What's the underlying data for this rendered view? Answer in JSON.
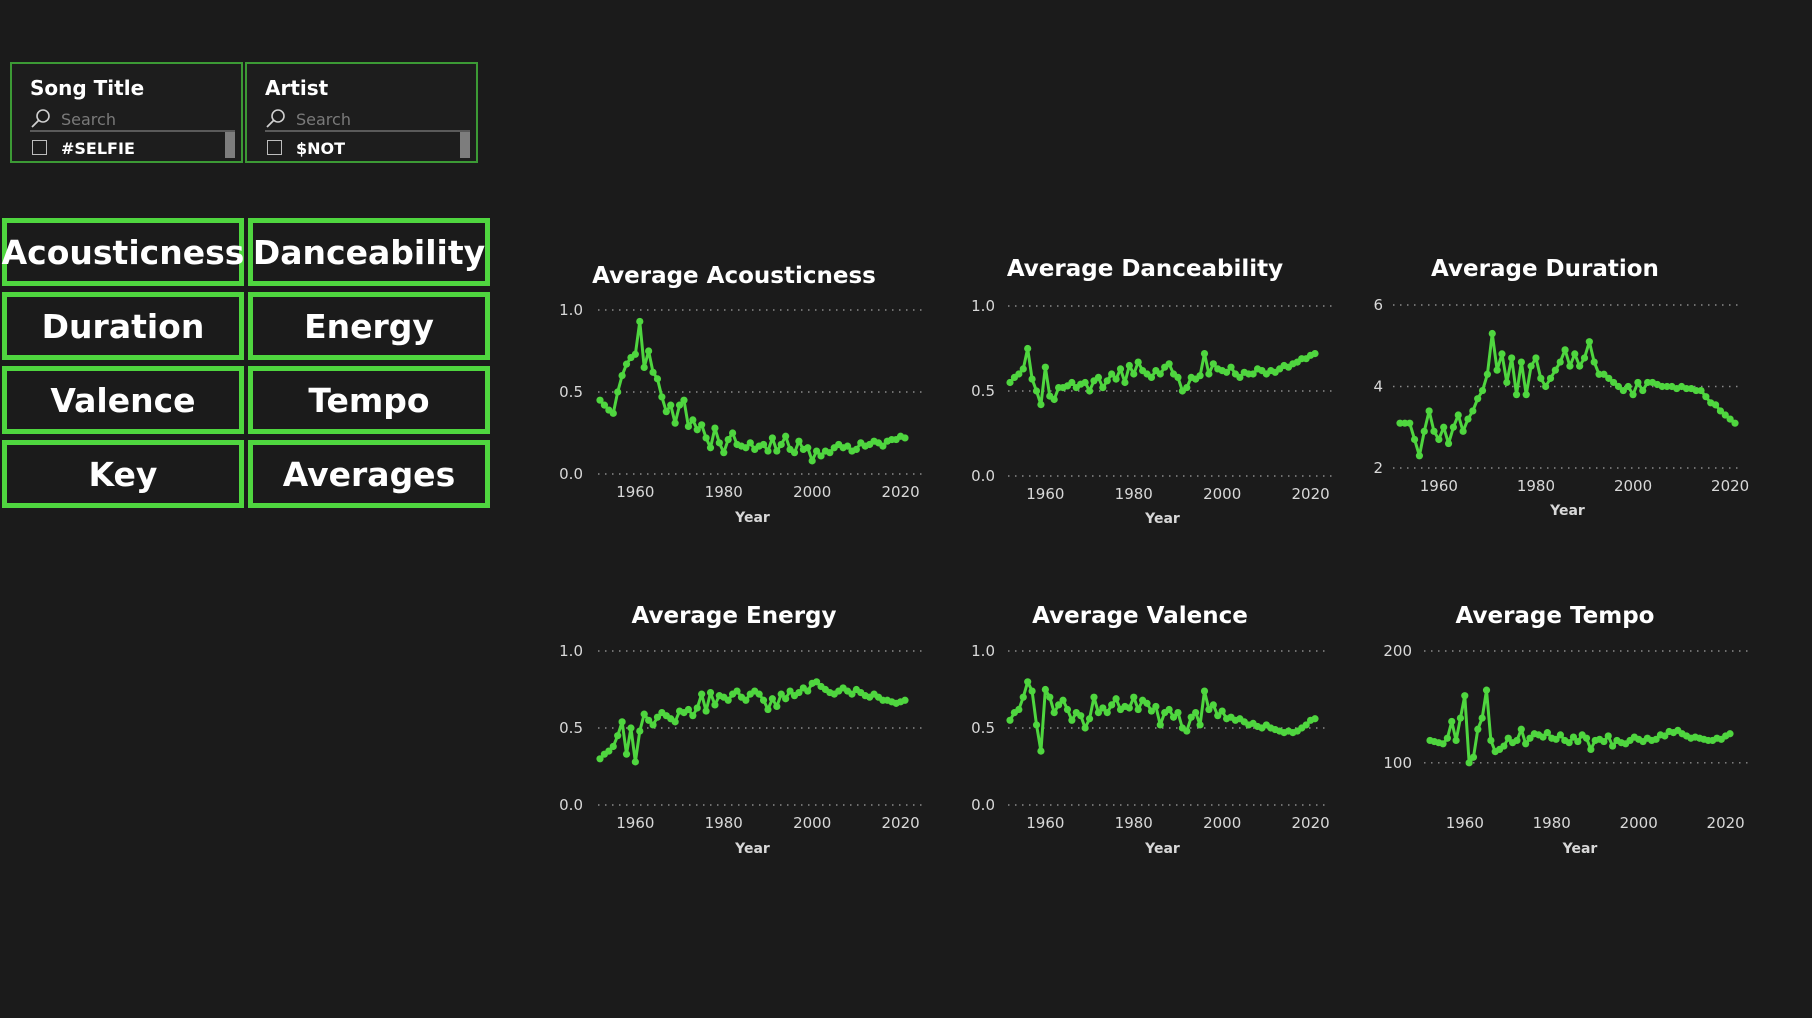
{
  "slicers": [
    {
      "title": "Song Title",
      "search_placeholder": "Search",
      "first_item": "#SELFIE"
    },
    {
      "title": "Artist",
      "search_placeholder": "Search",
      "first_item": "$NOT"
    }
  ],
  "nav_buttons": [
    "Acousticness",
    "Danceability",
    "Duration",
    "Energy",
    "Valence",
    "Tempo",
    "Key",
    "Averages"
  ],
  "colors": {
    "accent": "#4fd63f",
    "line": "#4fd63f",
    "background": "#1b1b1b",
    "slicer_border": "#3c9a35"
  },
  "chart_data": [
    {
      "type": "line",
      "title": "Average Acousticness",
      "xlabel": "Year",
      "ylabel": "",
      "ylim": [
        0,
        1
      ],
      "yticks": [
        "0.0",
        "0.5",
        "1.0"
      ],
      "xticks": [
        "1960",
        "1980",
        "2000",
        "2020"
      ],
      "x": [
        1952,
        1953,
        1954,
        1955,
        1956,
        1957,
        1958,
        1959,
        1960,
        1961,
        1962,
        1963,
        1964,
        1965,
        1966,
        1967,
        1968,
        1969,
        1970,
        1971,
        1972,
        1973,
        1974,
        1975,
        1976,
        1977,
        1978,
        1979,
        1980,
        1981,
        1982,
        1983,
        1984,
        1985,
        1986,
        1987,
        1988,
        1989,
        1990,
        1991,
        1992,
        1993,
        1994,
        1995,
        1996,
        1997,
        1998,
        1999,
        2000,
        2001,
        2002,
        2003,
        2004,
        2005,
        2006,
        2007,
        2008,
        2009,
        2010,
        2011,
        2012,
        2013,
        2014,
        2015,
        2016,
        2017,
        2018,
        2019,
        2020,
        2021
      ],
      "values": [
        0.45,
        0.42,
        0.39,
        0.37,
        0.5,
        0.6,
        0.67,
        0.71,
        0.73,
        0.93,
        0.65,
        0.75,
        0.62,
        0.58,
        0.47,
        0.38,
        0.42,
        0.31,
        0.42,
        0.45,
        0.29,
        0.33,
        0.27,
        0.3,
        0.22,
        0.16,
        0.28,
        0.19,
        0.13,
        0.21,
        0.25,
        0.18,
        0.17,
        0.16,
        0.19,
        0.15,
        0.17,
        0.18,
        0.14,
        0.22,
        0.14,
        0.18,
        0.23,
        0.15,
        0.13,
        0.2,
        0.15,
        0.16,
        0.08,
        0.14,
        0.11,
        0.14,
        0.13,
        0.16,
        0.18,
        0.16,
        0.17,
        0.14,
        0.15,
        0.19,
        0.17,
        0.18,
        0.2,
        0.19,
        0.17,
        0.2,
        0.21,
        0.21,
        0.23,
        0.22
      ]
    },
    {
      "type": "line",
      "title": "Average Danceability",
      "xlabel": "Year",
      "ylabel": "",
      "ylim": [
        0,
        1
      ],
      "yticks": [
        "0.0",
        "0.5",
        "1.0"
      ],
      "xticks": [
        "1960",
        "1980",
        "2000",
        "2020"
      ],
      "x": [
        1952,
        1953,
        1954,
        1955,
        1956,
        1957,
        1958,
        1959,
        1960,
        1961,
        1962,
        1963,
        1964,
        1965,
        1966,
        1967,
        1968,
        1969,
        1970,
        1971,
        1972,
        1973,
        1974,
        1975,
        1976,
        1977,
        1978,
        1979,
        1980,
        1981,
        1982,
        1983,
        1984,
        1985,
        1986,
        1987,
        1988,
        1989,
        1990,
        1991,
        1992,
        1993,
        1994,
        1995,
        1996,
        1997,
        1998,
        1999,
        2000,
        2001,
        2002,
        2003,
        2004,
        2005,
        2006,
        2007,
        2008,
        2009,
        2010,
        2011,
        2012,
        2013,
        2014,
        2015,
        2016,
        2017,
        2018,
        2019,
        2020,
        2021
      ],
      "values": [
        0.55,
        0.58,
        0.6,
        0.63,
        0.75,
        0.57,
        0.5,
        0.42,
        0.64,
        0.47,
        0.45,
        0.52,
        0.52,
        0.53,
        0.55,
        0.52,
        0.54,
        0.55,
        0.5,
        0.56,
        0.58,
        0.52,
        0.56,
        0.6,
        0.57,
        0.63,
        0.55,
        0.65,
        0.6,
        0.67,
        0.62,
        0.6,
        0.58,
        0.62,
        0.6,
        0.64,
        0.66,
        0.6,
        0.58,
        0.5,
        0.52,
        0.58,
        0.57,
        0.59,
        0.72,
        0.6,
        0.66,
        0.63,
        0.62,
        0.61,
        0.64,
        0.6,
        0.58,
        0.61,
        0.6,
        0.6,
        0.63,
        0.62,
        0.6,
        0.62,
        0.61,
        0.63,
        0.65,
        0.64,
        0.66,
        0.67,
        0.69,
        0.69,
        0.71,
        0.72
      ]
    },
    {
      "type": "line",
      "title": "Average Duration",
      "xlabel": "Year",
      "ylabel": "",
      "ylim": [
        2,
        6
      ],
      "yticks": [
        "2",
        "4",
        "6"
      ],
      "xticks": [
        "1960",
        "1980",
        "2000",
        "2020"
      ],
      "x": [
        1952,
        1953,
        1954,
        1955,
        1956,
        1957,
        1958,
        1959,
        1960,
        1961,
        1962,
        1963,
        1964,
        1965,
        1966,
        1967,
        1968,
        1969,
        1970,
        1971,
        1972,
        1973,
        1974,
        1975,
        1976,
        1977,
        1978,
        1979,
        1980,
        1981,
        1982,
        1983,
        1984,
        1985,
        1986,
        1987,
        1988,
        1989,
        1990,
        1991,
        1992,
        1993,
        1994,
        1995,
        1996,
        1997,
        1998,
        1999,
        2000,
        2001,
        2002,
        2003,
        2004,
        2005,
        2006,
        2007,
        2008,
        2009,
        2010,
        2011,
        2012,
        2013,
        2014,
        2015,
        2016,
        2017,
        2018,
        2019,
        2020,
        2021
      ],
      "values": [
        3.1,
        3.1,
        3.1,
        2.7,
        2.3,
        2.9,
        3.4,
        2.9,
        2.7,
        3.0,
        2.6,
        3.0,
        3.3,
        2.9,
        3.2,
        3.4,
        3.7,
        3.9,
        4.3,
        5.3,
        4.4,
        4.8,
        4.1,
        4.7,
        3.8,
        4.6,
        3.8,
        4.5,
        4.7,
        4.2,
        4.0,
        4.2,
        4.4,
        4.6,
        4.9,
        4.5,
        4.8,
        4.5,
        4.7,
        5.1,
        4.6,
        4.3,
        4.3,
        4.2,
        4.1,
        4.0,
        3.9,
        4.0,
        3.8,
        4.1,
        3.9,
        4.1,
        4.1,
        4.05,
        4.0,
        4.0,
        4.0,
        3.95,
        4.0,
        3.95,
        3.95,
        3.9,
        3.9,
        3.75,
        3.6,
        3.55,
        3.4,
        3.3,
        3.2,
        3.1
      ]
    },
    {
      "type": "line",
      "title": "Average Energy",
      "xlabel": "Year",
      "ylabel": "",
      "ylim": [
        0,
        1
      ],
      "yticks": [
        "0.0",
        "0.5",
        "1.0"
      ],
      "xticks": [
        "1960",
        "1980",
        "2000",
        "2020"
      ],
      "x": [
        1952,
        1953,
        1954,
        1955,
        1956,
        1957,
        1958,
        1959,
        1960,
        1961,
        1962,
        1963,
        1964,
        1965,
        1966,
        1967,
        1968,
        1969,
        1970,
        1971,
        1972,
        1973,
        1974,
        1975,
        1976,
        1977,
        1978,
        1979,
        1980,
        1981,
        1982,
        1983,
        1984,
        1985,
        1986,
        1987,
        1988,
        1989,
        1990,
        1991,
        1992,
        1993,
        1994,
        1995,
        1996,
        1997,
        1998,
        1999,
        2000,
        2001,
        2002,
        2003,
        2004,
        2005,
        2006,
        2007,
        2008,
        2009,
        2010,
        2011,
        2012,
        2013,
        2014,
        2015,
        2016,
        2017,
        2018,
        2019,
        2020,
        2021
      ],
      "values": [
        0.3,
        0.33,
        0.35,
        0.38,
        0.45,
        0.54,
        0.33,
        0.5,
        0.28,
        0.48,
        0.59,
        0.55,
        0.52,
        0.57,
        0.6,
        0.58,
        0.56,
        0.54,
        0.61,
        0.6,
        0.62,
        0.58,
        0.63,
        0.72,
        0.61,
        0.73,
        0.65,
        0.71,
        0.7,
        0.68,
        0.72,
        0.74,
        0.7,
        0.68,
        0.72,
        0.74,
        0.72,
        0.68,
        0.62,
        0.69,
        0.64,
        0.72,
        0.69,
        0.74,
        0.71,
        0.73,
        0.76,
        0.74,
        0.79,
        0.8,
        0.77,
        0.75,
        0.73,
        0.72,
        0.74,
        0.76,
        0.74,
        0.72,
        0.75,
        0.73,
        0.71,
        0.7,
        0.72,
        0.7,
        0.68,
        0.68,
        0.67,
        0.66,
        0.67,
        0.68
      ]
    },
    {
      "type": "line",
      "title": "Average Valence",
      "xlabel": "Year",
      "ylabel": "",
      "ylim": [
        0,
        1
      ],
      "yticks": [
        "0.0",
        "0.5",
        "1.0"
      ],
      "xticks": [
        "1960",
        "1980",
        "2000",
        "2020"
      ],
      "x": [
        1952,
        1953,
        1954,
        1955,
        1956,
        1957,
        1958,
        1959,
        1960,
        1961,
        1962,
        1963,
        1964,
        1965,
        1966,
        1967,
        1968,
        1969,
        1970,
        1971,
        1972,
        1973,
        1974,
        1975,
        1976,
        1977,
        1978,
        1979,
        1980,
        1981,
        1982,
        1983,
        1984,
        1985,
        1986,
        1987,
        1988,
        1989,
        1990,
        1991,
        1992,
        1993,
        1994,
        1995,
        1996,
        1997,
        1998,
        1999,
        2000,
        2001,
        2002,
        2003,
        2004,
        2005,
        2006,
        2007,
        2008,
        2009,
        2010,
        2011,
        2012,
        2013,
        2014,
        2015,
        2016,
        2017,
        2018,
        2019,
        2020,
        2021
      ],
      "values": [
        0.55,
        0.6,
        0.62,
        0.7,
        0.8,
        0.74,
        0.52,
        0.35,
        0.75,
        0.7,
        0.6,
        0.65,
        0.68,
        0.62,
        0.55,
        0.6,
        0.58,
        0.5,
        0.56,
        0.7,
        0.6,
        0.63,
        0.6,
        0.65,
        0.69,
        0.62,
        0.64,
        0.63,
        0.7,
        0.62,
        0.68,
        0.66,
        0.61,
        0.64,
        0.52,
        0.6,
        0.62,
        0.57,
        0.6,
        0.5,
        0.48,
        0.57,
        0.6,
        0.52,
        0.74,
        0.62,
        0.65,
        0.58,
        0.61,
        0.56,
        0.57,
        0.55,
        0.56,
        0.54,
        0.52,
        0.53,
        0.51,
        0.5,
        0.52,
        0.5,
        0.49,
        0.48,
        0.47,
        0.48,
        0.47,
        0.48,
        0.5,
        0.52,
        0.55,
        0.56
      ]
    },
    {
      "type": "line",
      "title": "Average Tempo",
      "xlabel": "Year",
      "ylabel": "",
      "ylim": [
        90,
        200
      ],
      "yticks": [
        "100",
        "200"
      ],
      "xticks": [
        "1960",
        "1980",
        "2000",
        "2020"
      ],
      "x": [
        1952,
        1953,
        1954,
        1955,
        1956,
        1957,
        1958,
        1959,
        1960,
        1961,
        1962,
        1963,
        1964,
        1965,
        1966,
        1967,
        1968,
        1969,
        1970,
        1971,
        1972,
        1973,
        1974,
        1975,
        1976,
        1977,
        1978,
        1979,
        1980,
        1981,
        1982,
        1983,
        1984,
        1985,
        1986,
        1987,
        1988,
        1989,
        1990,
        1991,
        1992,
        1993,
        1994,
        1995,
        1996,
        1997,
        1998,
        1999,
        2000,
        2001,
        2002,
        2003,
        2004,
        2005,
        2006,
        2007,
        2008,
        2009,
        2010,
        2011,
        2012,
        2013,
        2014,
        2015,
        2016,
        2017,
        2018,
        2019,
        2020,
        2021
      ],
      "values": [
        120,
        119,
        118,
        117,
        122,
        137,
        120,
        140,
        160,
        100,
        105,
        130,
        140,
        165,
        120,
        110,
        112,
        115,
        122,
        118,
        120,
        130,
        117,
        122,
        126,
        125,
        123,
        127,
        122,
        121,
        125,
        120,
        118,
        123,
        119,
        125,
        122,
        112,
        120,
        121,
        119,
        124,
        115,
        120,
        118,
        117,
        120,
        123,
        121,
        119,
        122,
        120,
        121,
        125,
        124,
        128,
        127,
        129,
        126,
        124,
        122,
        123,
        122,
        121,
        120,
        120,
        122,
        121,
        124,
        126
      ]
    }
  ]
}
